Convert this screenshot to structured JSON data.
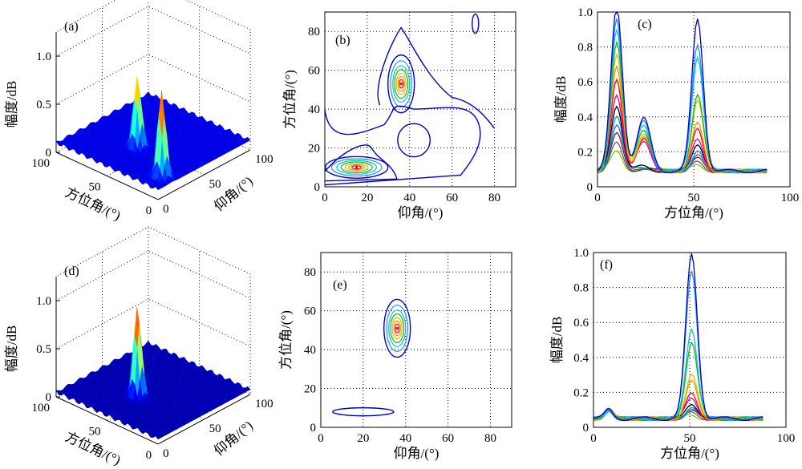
{
  "figure": {
    "panel_labels": [
      "(a)",
      "(b)",
      "(c)",
      "(d)",
      "(e)",
      "(f)"
    ]
  },
  "chart_data": [
    {
      "panel": "(a)",
      "type": "surface",
      "zlabel": "幅度/dB",
      "xlabel": "方位角/(°)",
      "ylabel": "仰角/(°)",
      "zticks": [
        "0",
        "0.5",
        "1.0"
      ],
      "xticks": [
        "100",
        "50",
        "0"
      ],
      "yticks": [
        "0",
        "50",
        "100"
      ],
      "zlim": [
        0,
        1.0
      ],
      "peaks": [
        {
          "azimuth": 10,
          "elevation": 15,
          "amplitude": 1.0
        },
        {
          "azimuth": 52,
          "elevation": 35,
          "amplitude": 0.85
        }
      ],
      "floor_level": 0.1
    },
    {
      "panel": "(b)",
      "type": "contour",
      "xlabel": "仰角/(°)",
      "ylabel": "方位角/(°)",
      "xticks": [
        "0",
        "20",
        "40",
        "60",
        "80"
      ],
      "yticks": [
        "0",
        "20",
        "40",
        "60",
        "80"
      ],
      "xlim": [
        0,
        90
      ],
      "ylim": [
        0,
        90
      ],
      "grid": true,
      "peaks": [
        {
          "elevation": 15,
          "azimuth": 10
        },
        {
          "elevation": 36,
          "azimuth": 53
        }
      ]
    },
    {
      "panel": "(c)",
      "type": "line",
      "xlabel": "方位角/(°)",
      "ylabel": "幅度/dB",
      "xticks": [
        "0",
        "50",
        "100"
      ],
      "yticks": [
        "0",
        "0.2",
        "0.4",
        "0.6",
        "0.8",
        "1.0"
      ],
      "xlim": [
        0,
        100
      ],
      "ylim": [
        0,
        1.0
      ],
      "grid": true,
      "series_peaks": [
        {
          "azimuth": 10,
          "amplitudes": [
            1.0,
            0.94,
            0.88,
            0.8,
            0.72,
            0.65,
            0.58,
            0.5,
            0.44,
            0.38,
            0.32,
            0.27,
            0.22,
            0.18
          ]
        },
        {
          "azimuth": 52,
          "amplitudes": [
            0.93,
            0.79,
            0.72,
            0.5,
            0.46,
            0.33,
            0.3,
            0.25,
            0.22,
            0.18,
            0.15,
            0.13,
            0.11,
            0.1
          ]
        }
      ]
    },
    {
      "panel": "(d)",
      "type": "surface",
      "zlabel": "幅度/dB",
      "xlabel": "方位角/(°)",
      "ylabel": "仰角/(°)",
      "zticks": [
        "0",
        "0.5",
        "1.0"
      ],
      "xticks": [
        "100",
        "50",
        "0"
      ],
      "yticks": [
        "0",
        "50",
        "100"
      ],
      "zlim": [
        0,
        1.0
      ],
      "peaks": [
        {
          "azimuth": 52,
          "elevation": 35,
          "amplitude": 1.0
        }
      ],
      "floor_level": 0.05
    },
    {
      "panel": "(e)",
      "type": "contour",
      "xlabel": "仰角/(°)",
      "ylabel": "方位角/(°)",
      "xticks": [
        "0",
        "20",
        "40",
        "60",
        "80"
      ],
      "yticks": [
        "0",
        "20",
        "40",
        "60",
        "80"
      ],
      "xlim": [
        0,
        90
      ],
      "ylim": [
        0,
        90
      ],
      "grid": true,
      "peaks": [
        {
          "elevation": 36,
          "azimuth": 51
        }
      ]
    },
    {
      "panel": "(f)",
      "type": "line",
      "xlabel": "方位角/(°)",
      "ylabel": "幅度/dB",
      "xticks": [
        "0",
        "50",
        "100"
      ],
      "yticks": [
        "0",
        "0.2",
        "0.4",
        "0.6",
        "0.8",
        "1.0"
      ],
      "xlim": [
        0,
        100
      ],
      "ylim": [
        0,
        1.0
      ],
      "grid": true,
      "series_peaks": [
        {
          "azimuth": 51,
          "amplitudes": [
            1.0,
            0.91,
            0.58,
            0.5,
            0.31,
            0.27,
            0.2,
            0.18,
            0.15,
            0.13,
            0.11,
            0.1,
            0.09,
            0.08
          ]
        }
      ]
    }
  ],
  "palette": [
    "#0000cc",
    "#1e90ff",
    "#00c8c8",
    "#20b020",
    "#c8c800",
    "#ff8c00",
    "#ff0000",
    "#cc00cc",
    "#000000",
    "#00aa88",
    "#3060ff",
    "#8b2020",
    "#606060",
    "#88cc00"
  ]
}
